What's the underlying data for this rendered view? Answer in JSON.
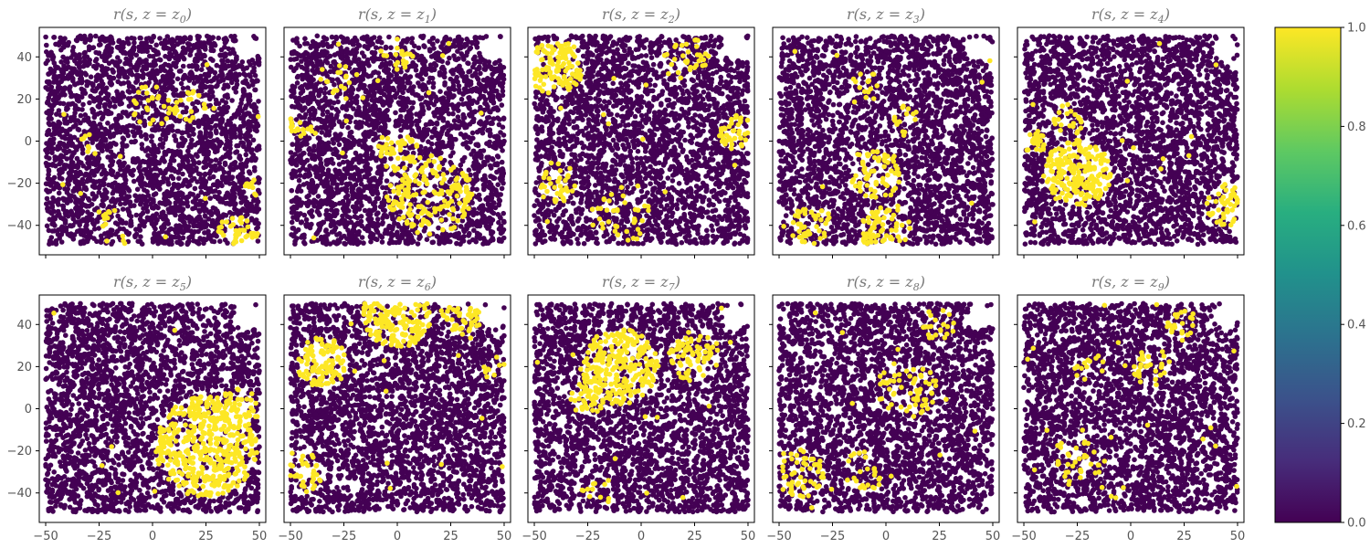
{
  "chart_data": {
    "type": "scatter",
    "layout": "2x5 small multiples with shared axes and one colorbar",
    "colormap": "viridis",
    "colors": {
      "low": "#440154",
      "high": "#fde725",
      "axis": "#000000",
      "tick_text": "#555555",
      "title_text": "#777777"
    },
    "xlim": [
      -53,
      53
    ],
    "ylim": [
      -54,
      54
    ],
    "x_ticks": [
      "−50",
      "−25",
      "0",
      "25",
      "50"
    ],
    "x_tick_values": [
      -50,
      -25,
      0,
      25,
      50
    ],
    "y_ticks": [
      "40",
      "20",
      "0",
      "−20",
      "−40"
    ],
    "y_tick_values": [
      40,
      20,
      0,
      -20,
      -40
    ],
    "colorbar": {
      "ticks": [
        "1.0",
        "0.8",
        "0.6",
        "0.4",
        "0.2",
        "0.0"
      ],
      "tick_values": [
        1.0,
        0.8,
        0.6,
        0.4,
        0.2,
        0.0
      ],
      "range": [
        0,
        1
      ]
    },
    "panels": [
      {
        "title_prefix": "r(s, z = z",
        "index": "0",
        "title_suffix": ")",
        "high_regions": [
          {
            "x": 0,
            "y": 17,
            "r": 10,
            "d": 0.25
          },
          {
            "x": 18,
            "y": 16,
            "r": 8,
            "d": 0.35
          },
          {
            "x": -30,
            "y": -2,
            "r": 6,
            "d": 0.3
          },
          {
            "x": -18,
            "y": -40,
            "r": 10,
            "d": 0.2
          },
          {
            "x": 40,
            "y": -45,
            "r": 10,
            "d": 0.65
          },
          {
            "x": 47,
            "y": -22,
            "r": 5,
            "d": 0.3
          }
        ]
      },
      {
        "title_prefix": "r(s, z = z",
        "index": "1",
        "title_suffix": ")",
        "high_regions": [
          {
            "x": 0,
            "y": -5,
            "r": 10,
            "d": 0.55
          },
          {
            "x": 15,
            "y": -25,
            "r": 20,
            "d": 0.4
          },
          {
            "x": 0,
            "y": 42,
            "r": 8,
            "d": 0.35
          },
          {
            "x": -45,
            "y": 8,
            "r": 6,
            "d": 0.4
          },
          {
            "x": -30,
            "y": 30,
            "r": 8,
            "d": 0.2
          }
        ]
      },
      {
        "title_prefix": "r(s, z = z",
        "index": "2",
        "title_suffix": ")",
        "high_regions": [
          {
            "x": -40,
            "y": 35,
            "r": 13,
            "d": 0.7
          },
          {
            "x": 45,
            "y": 5,
            "r": 9,
            "d": 0.6
          },
          {
            "x": -40,
            "y": -20,
            "r": 10,
            "d": 0.35
          },
          {
            "x": 20,
            "y": 40,
            "r": 12,
            "d": 0.25
          },
          {
            "x": -10,
            "y": -35,
            "r": 14,
            "d": 0.2
          }
        ]
      },
      {
        "title_prefix": "r(s, z = z",
        "index": "3",
        "title_suffix": ")",
        "high_regions": [
          {
            "x": -5,
            "y": -15,
            "r": 12,
            "d": 0.55
          },
          {
            "x": 0,
            "y": -43,
            "r": 12,
            "d": 0.55
          },
          {
            "x": -35,
            "y": -40,
            "r": 10,
            "d": 0.4
          },
          {
            "x": -10,
            "y": 25,
            "r": 8,
            "d": 0.3
          },
          {
            "x": 10,
            "y": 10,
            "r": 8,
            "d": 0.3
          }
        ]
      },
      {
        "title_prefix": "r(s, z = z",
        "index": "4",
        "title_suffix": ")",
        "high_regions": [
          {
            "x": -25,
            "y": -15,
            "r": 16,
            "d": 0.8
          },
          {
            "x": -45,
            "y": 0,
            "r": 6,
            "d": 0.7
          },
          {
            "x": 45,
            "y": -30,
            "r": 10,
            "d": 0.7
          },
          {
            "x": -30,
            "y": 10,
            "r": 8,
            "d": 0.4
          }
        ]
      },
      {
        "title_prefix": "r(s, z = z",
        "index": "5",
        "title_suffix": ")",
        "high_regions": [
          {
            "x": 25,
            "y": -18,
            "r": 24,
            "d": 0.75
          },
          {
            "x": 40,
            "y": 0,
            "r": 10,
            "d": 0.5
          }
        ]
      },
      {
        "title_prefix": "r(s, z = z",
        "index": "6",
        "title_suffix": ")",
        "high_regions": [
          {
            "x": -35,
            "y": 22,
            "r": 12,
            "d": 0.7
          },
          {
            "x": 0,
            "y": 45,
            "r": 16,
            "d": 0.8
          },
          {
            "x": 30,
            "y": 45,
            "r": 10,
            "d": 0.6
          },
          {
            "x": -45,
            "y": -30,
            "r": 10,
            "d": 0.55
          },
          {
            "x": 45,
            "y": 20,
            "r": 6,
            "d": 0.4
          }
        ]
      },
      {
        "title_prefix": "r(s, z = z",
        "index": "7",
        "title_suffix": ")",
        "high_regions": [
          {
            "x": -10,
            "y": 20,
            "r": 18,
            "d": 0.75
          },
          {
            "x": -25,
            "y": 5,
            "r": 8,
            "d": 0.6
          },
          {
            "x": 25,
            "y": 25,
            "r": 12,
            "d": 0.55
          },
          {
            "x": -20,
            "y": -40,
            "r": 8,
            "d": 0.15
          }
        ]
      },
      {
        "title_prefix": "r(s, z = z",
        "index": "8",
        "title_suffix": ")",
        "high_regions": [
          {
            "x": 10,
            "y": 10,
            "r": 14,
            "d": 0.35
          },
          {
            "x": -40,
            "y": -30,
            "r": 12,
            "d": 0.35
          },
          {
            "x": -10,
            "y": -30,
            "r": 10,
            "d": 0.25
          },
          {
            "x": 25,
            "y": 40,
            "r": 8,
            "d": 0.3
          }
        ]
      },
      {
        "title_prefix": "r(s, z = z",
        "index": "9",
        "title_suffix": ")",
        "high_regions": [
          {
            "x": 10,
            "y": 20,
            "r": 10,
            "d": 0.3
          },
          {
            "x": -25,
            "y": -25,
            "r": 12,
            "d": 0.25
          },
          {
            "x": -20,
            "y": 20,
            "r": 8,
            "d": 0.25
          },
          {
            "x": 25,
            "y": 40,
            "r": 8,
            "d": 0.25
          },
          {
            "x": -5,
            "y": -45,
            "r": 8,
            "d": 0.2
          }
        ]
      }
    ]
  }
}
